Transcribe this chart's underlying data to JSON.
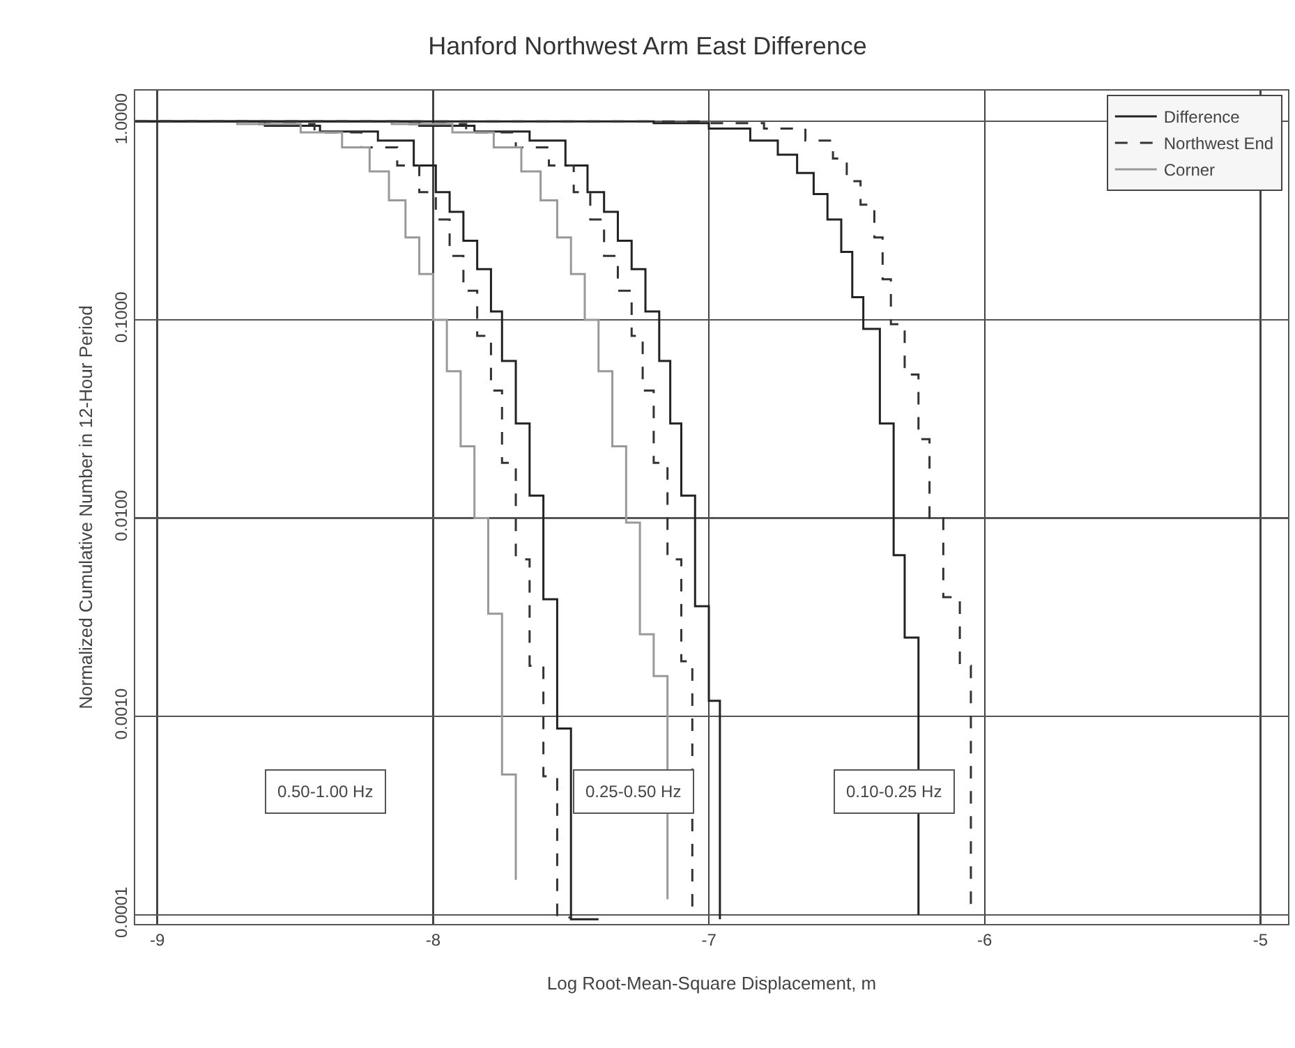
{
  "chart_data": {
    "type": "step",
    "title": "Hanford Northwest Arm East Difference",
    "xlabel": "Log Root-Mean-Square Displacement, m",
    "ylabel": "Normalized Cumulative Number in 12-Hour Period",
    "log": "y",
    "grid": true,
    "legend": "top right",
    "marker": "none",
    "xlim": [
      -9.08,
      -4.9
    ],
    "xticks": [
      -9,
      -8,
      -7,
      -6,
      -5
    ],
    "ylim": [
      9e-05,
      1.43
    ],
    "yticks": [
      {
        "value": 1,
        "label": "1.0000"
      },
      {
        "value": 0.1,
        "label": "0.1000"
      },
      {
        "value": 0.01,
        "label": "0.0100"
      },
      {
        "value": 0.001,
        "label": "0.0010"
      },
      {
        "value": 0.0001,
        "label": "0.0001"
      }
    ],
    "series": [
      {
        "name": "Difference",
        "color": "#222222",
        "line_style": "solid",
        "x": [
          -9.08,
          -8.61,
          -8.41,
          -8.2,
          -8.07,
          -7.99,
          -7.94,
          -7.89,
          -7.84,
          -7.79,
          -7.75,
          -7.7,
          -7.65,
          -7.6,
          -7.55,
          -7.5,
          -7.4
        ],
        "values": [
          1,
          0.95,
          0.89,
          0.8,
          0.6,
          0.44,
          0.35,
          0.25,
          0.18,
          0.11,
          0.062,
          0.03,
          0.013,
          0.0039,
          0.00087,
          9.5e-05,
          9.5e-05
        ]
      },
      {
        "name": "Northwest End",
        "color": "#333333",
        "line_style": "dashed",
        "x": [
          -9.08,
          -8.66,
          -8.43,
          -8.26,
          -8.13,
          -8.05,
          -7.99,
          -7.94,
          -7.89,
          -7.84,
          -7.79,
          -7.75,
          -7.7,
          -7.65,
          -7.6,
          -7.55,
          -7.5
        ],
        "values": [
          1,
          0.97,
          0.88,
          0.74,
          0.6,
          0.44,
          0.32,
          0.21,
          0.14,
          0.083,
          0.044,
          0.019,
          0.0062,
          0.0018,
          0.0005,
          9.7e-05,
          9.7e-05
        ]
      },
      {
        "name": "Corner",
        "color": "#999999",
        "line_style": "solid",
        "x": [
          -9.08,
          -8.71,
          -8.48,
          -8.33,
          -8.23,
          -8.16,
          -8.1,
          -8.05,
          -8,
          -7.95,
          -7.9,
          -7.85,
          -7.8,
          -7.75,
          -7.7
        ],
        "values": [
          1,
          0.97,
          0.88,
          0.74,
          0.56,
          0.4,
          0.26,
          0.17,
          0.1,
          0.055,
          0.023,
          0.01,
          0.0033,
          0.00051,
          0.00015
        ]
      },
      {
        "color": "#222222",
        "line_style": "solid",
        "x": [
          -9.08,
          -8.05,
          -7.85,
          -7.65,
          -7.52,
          -7.44,
          -7.38,
          -7.33,
          -7.28,
          -7.23,
          -7.18,
          -7.14,
          -7.1,
          -7.05,
          -7,
          -6.96
        ],
        "values": [
          1,
          0.95,
          0.89,
          0.8,
          0.6,
          0.44,
          0.35,
          0.25,
          0.18,
          0.11,
          0.062,
          0.03,
          0.013,
          0.0036,
          0.0012,
          9.5e-05
        ]
      },
      {
        "color": "#333333",
        "line_style": "dashed",
        "x": [
          -9.08,
          -8.1,
          -7.88,
          -7.7,
          -7.58,
          -7.49,
          -7.43,
          -7.38,
          -7.33,
          -7.28,
          -7.24,
          -7.2,
          -7.15,
          -7.1,
          -7.06
        ],
        "values": [
          1,
          0.97,
          0.88,
          0.74,
          0.6,
          0.44,
          0.32,
          0.21,
          0.14,
          0.083,
          0.044,
          0.019,
          0.0062,
          0.0019,
          0.0001
        ]
      },
      {
        "color": "#999999",
        "line_style": "solid",
        "x": [
          -9.08,
          -8.15,
          -7.93,
          -7.78,
          -7.68,
          -7.61,
          -7.55,
          -7.5,
          -7.45,
          -7.4,
          -7.35,
          -7.3,
          -7.25,
          -7.2,
          -7.15
        ],
        "values": [
          1,
          0.97,
          0.88,
          0.74,
          0.56,
          0.4,
          0.26,
          0.17,
          0.1,
          0.055,
          0.023,
          0.0095,
          0.0026,
          0.0016,
          0.00012
        ]
      },
      {
        "color": "#222222",
        "line_style": "solid",
        "x": [
          -9.08,
          -7.2,
          -7,
          -6.85,
          -6.75,
          -6.68,
          -6.62,
          -6.57,
          -6.52,
          -6.48,
          -6.44,
          -6.38,
          -6.33,
          -6.29,
          -6.24
        ],
        "values": [
          1,
          0.98,
          0.92,
          0.8,
          0.68,
          0.55,
          0.43,
          0.32,
          0.22,
          0.13,
          0.09,
          0.03,
          0.0065,
          0.0025,
          0.0001
        ]
      },
      {
        "color": "#333333",
        "line_style": "dashed",
        "x": [
          -9.08,
          -7,
          -6.8,
          -6.65,
          -6.55,
          -6.5,
          -6.45,
          -6.4,
          -6.37,
          -6.34,
          -6.29,
          -6.24,
          -6.2,
          -6.15,
          -6.09,
          -6.05
        ],
        "values": [
          1,
          0.98,
          0.92,
          0.8,
          0.65,
          0.5,
          0.38,
          0.26,
          0.16,
          0.095,
          0.053,
          0.025,
          0.01,
          0.004,
          0.0018,
          0.0001
        ]
      }
    ],
    "annotations": [
      "0.50-1.00 Hz",
      "0.25-0.50 Hz",
      "0.10-0.25 Hz"
    ]
  }
}
